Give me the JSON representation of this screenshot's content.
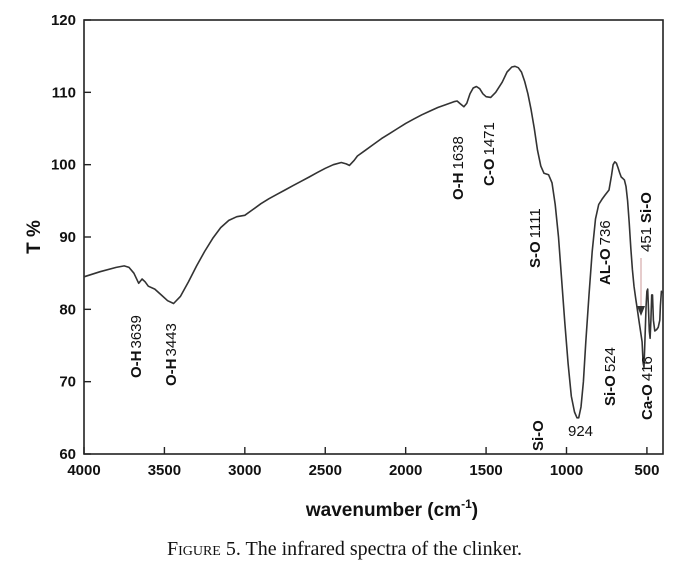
{
  "chart_data": {
    "type": "line",
    "xlabel": "wavenumber (cm",
    "xlabel_sup": "-1",
    "xlabel_close": ")",
    "ylabel": "T %",
    "xlim": [
      4000,
      400
    ],
    "ylim": [
      60,
      120
    ],
    "x_reversed": true,
    "grid": false,
    "x_ticks": [
      "4000",
      "3500",
      "3000",
      "2500",
      "2000",
      "1500",
      "1000",
      "500"
    ],
    "y_ticks": [
      "60",
      "70",
      "80",
      "90",
      "100",
      "110",
      "120"
    ],
    "series": [
      {
        "x": [
          4000,
          3900,
          3800,
          3750,
          3720,
          3690,
          3660,
          3639,
          3620,
          3600,
          3560,
          3520,
          3480,
          3443,
          3400,
          3350,
          3300,
          3250,
          3200,
          3150,
          3100,
          3050,
          3000,
          2950,
          2900,
          2850,
          2800,
          2750,
          2700,
          2650,
          2600,
          2550,
          2500,
          2450,
          2400,
          2370,
          2350,
          2320,
          2300,
          2250,
          2200,
          2150,
          2100,
          2050,
          2000,
          1950,
          1900,
          1850,
          1800,
          1750,
          1700,
          1680,
          1660,
          1638,
          1620,
          1600,
          1580,
          1560,
          1540,
          1520,
          1500,
          1471,
          1440,
          1400,
          1370,
          1340,
          1320,
          1300,
          1280,
          1260,
          1240,
          1220,
          1200,
          1180,
          1160,
          1140,
          1111,
          1090,
          1070,
          1050,
          1030,
          1010,
          990,
          970,
          950,
          935,
          924,
          910,
          895,
          880,
          860,
          840,
          820,
          800,
          780,
          760,
          736,
          720,
          710,
          700,
          690,
          680,
          670,
          660,
          650,
          640,
          630,
          620,
          610,
          600,
          590,
          580,
          570,
          560,
          550,
          540,
          530,
          524,
          518,
          512,
          505,
          500,
          495,
          490,
          485,
          480,
          475,
          470,
          465,
          460,
          451,
          440,
          430,
          420,
          416,
          410,
          405
        ],
        "values": [
          84.5,
          85.2,
          85.8,
          86.0,
          85.8,
          85.0,
          83.6,
          84.2,
          83.8,
          83.2,
          82.8,
          82.0,
          81.2,
          80.8,
          81.8,
          83.8,
          86.0,
          88.0,
          89.8,
          91.3,
          92.3,
          92.8,
          93.0,
          93.8,
          94.6,
          95.3,
          95.9,
          96.5,
          97.1,
          97.7,
          98.3,
          98.9,
          99.5,
          100.0,
          100.3,
          100.1,
          99.9,
          100.6,
          101.2,
          102.0,
          102.8,
          103.6,
          104.3,
          105.0,
          105.7,
          106.3,
          106.9,
          107.4,
          107.9,
          108.3,
          108.7,
          108.8,
          108.4,
          108.0,
          108.5,
          109.8,
          110.6,
          110.8,
          110.5,
          109.8,
          109.4,
          109.3,
          110.0,
          111.4,
          112.8,
          113.5,
          113.6,
          113.4,
          112.8,
          111.5,
          109.8,
          107.6,
          105.0,
          102.0,
          99.8,
          98.8,
          98.6,
          97.5,
          94.5,
          90.0,
          84.0,
          78.0,
          72.5,
          68.0,
          65.8,
          65.0,
          65.0,
          66.5,
          70.0,
          75.5,
          82.0,
          88.0,
          92.5,
          94.5,
          95.2,
          95.8,
          96.5,
          98.5,
          100.0,
          100.4,
          100.2,
          99.6,
          98.9,
          98.3,
          98.1,
          97.9,
          97.0,
          95.0,
          92.0,
          88.5,
          85.5,
          83.2,
          81.5,
          80.0,
          78.5,
          77.0,
          75.5,
          72.6,
          72.0,
          76.0,
          80.5,
          82.5,
          82.8,
          80.0,
          77.0,
          76.0,
          78.5,
          82.0,
          82.0,
          78.5,
          77.0,
          77.2,
          77.5,
          78.5,
          80.5,
          82.5,
          82.2
        ]
      }
    ],
    "annotations": [
      {
        "bold": "O-H",
        "num": "3639"
      },
      {
        "bold": "O-H",
        "num": "3443"
      },
      {
        "bold": "O-H",
        "num": "1638"
      },
      {
        "bold": "C-O",
        "num": "1471"
      },
      {
        "bold": "S-O",
        "num": "1111"
      },
      {
        "bold": "Si-O",
        "num": "924"
      },
      {
        "bold": "AL-O",
        "num": "736"
      },
      {
        "bold": "Si-O",
        "num": "524"
      },
      {
        "bold": "Ca-O",
        "num": "416"
      },
      {
        "bold": "Si-O",
        "num": "451"
      }
    ]
  },
  "caption": {
    "label": "Figure 5.",
    "text": " The infrared spectra of the clinker."
  }
}
